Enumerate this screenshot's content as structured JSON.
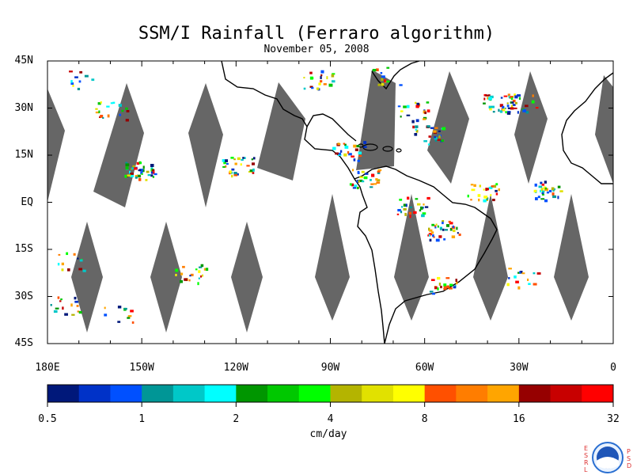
{
  "title": "SSM/I Rainfall (Ferraro algorithm)",
  "date": "November 05, 2008",
  "map": {
    "lat_labels": [
      "45N",
      "30N",
      "15N",
      "EQ",
      "15S",
      "30S",
      "45S"
    ],
    "lon_labels": [
      "180E",
      "150W",
      "120W",
      "90W",
      "60W",
      "30W",
      "0"
    ]
  },
  "colorbar": {
    "colors": [
      "#00187a",
      "#0032c8",
      "#0050ff",
      "#009696",
      "#00c8c8",
      "#00ffff",
      "#009600",
      "#00c800",
      "#00ff00",
      "#b4b400",
      "#e1e100",
      "#ffff00",
      "#ff5000",
      "#ff7d00",
      "#ffa500",
      "#960000",
      "#c80000",
      "#ff0000"
    ],
    "tick_labels": [
      "0.5",
      "1",
      "2",
      "4",
      "8",
      "16",
      "32"
    ],
    "units": "cm/day"
  },
  "logo": {
    "left_letters": [
      "E",
      "S",
      "R",
      "L"
    ],
    "right_letters": [
      "P",
      "S",
      "D"
    ],
    "center_text": "NOAA"
  }
}
